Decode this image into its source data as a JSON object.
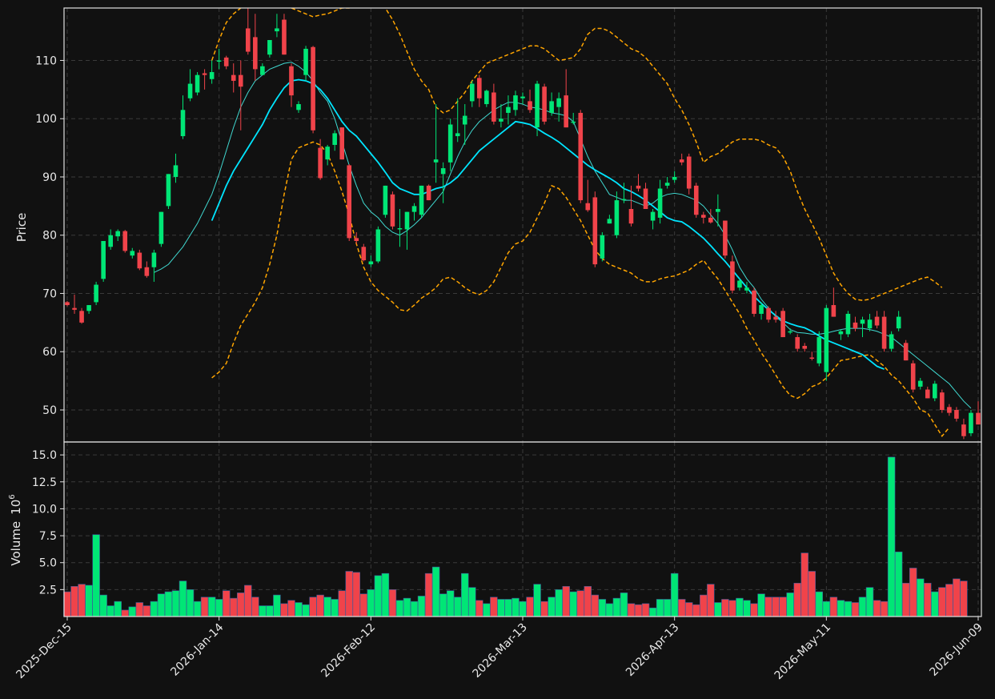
{
  "chart_data": {
    "type": "candlestick",
    "x_tick_labels": [
      "2025-Dec-15",
      "2026-Jan-14",
      "2026-Feb-12",
      "2026-Mar-13",
      "2026-Apr-13",
      "2026-May-11",
      "2026-Jun-09"
    ],
    "x_tick_indices": [
      0,
      21,
      42,
      63,
      84,
      105,
      126
    ],
    "price_panel": {
      "ylabel": "Price",
      "ylim": [
        44.5,
        119
      ],
      "yticks": [
        50,
        60,
        70,
        80,
        90,
        100,
        110
      ],
      "grid": true
    },
    "volume_panel": {
      "ylabel": "Volume",
      "ylabel_exponent": "10",
      "ylabel_exponent_power": "6",
      "ylim": [
        0,
        16.2
      ],
      "yticks": [
        2.5,
        5.0,
        7.5,
        10.0,
        12.5,
        15.0
      ],
      "ytick_labels": [
        "2.5",
        "5.0",
        "7.5",
        "10.0",
        "12.5",
        "15.0"
      ],
      "grid": true
    },
    "colors": {
      "up": "#00e676",
      "down": "#f0434a",
      "ma_fast": "#40d8d0",
      "ma_slow": "#00e5ff",
      "bands": "#ffa500",
      "background": "#111111",
      "grid": "#3a3a3a",
      "frame": "#e0e0e0",
      "text": "#e8e8e8"
    },
    "ohlc": [
      [
        68.5,
        68.7,
        67.8,
        68.0
      ],
      [
        67.5,
        69.8,
        66.5,
        67.2
      ],
      [
        67.0,
        67.5,
        64.8,
        65.0
      ],
      [
        67.0,
        68.0,
        66.5,
        68.0
      ],
      [
        68.5,
        72.0,
        68.0,
        71.5
      ],
      [
        72.5,
        79.0,
        72.0,
        79.0
      ],
      [
        78.0,
        81.0,
        77.5,
        80.0
      ],
      [
        79.8,
        81.0,
        79.0,
        80.7
      ],
      [
        80.7,
        80.9,
        77.0,
        77.3
      ],
      [
        76.5,
        77.8,
        76.0,
        77.3
      ],
      [
        77.0,
        77.5,
        74.0,
        74.3
      ],
      [
        74.5,
        75.5,
        72.7,
        73.0
      ],
      [
        74.5,
        77.5,
        72.0,
        77.0
      ],
      [
        78.5,
        84.0,
        78.0,
        84.0
      ],
      [
        85.0,
        90.5,
        84.5,
        90.5
      ],
      [
        90.0,
        94.0,
        89.0,
        92.0
      ],
      [
        97.0,
        104.0,
        96.5,
        101.5
      ],
      [
        103.5,
        108.5,
        103.0,
        106.0
      ],
      [
        104.5,
        108.0,
        104.0,
        107.5
      ],
      [
        107.8,
        108.5,
        105.0,
        107.5
      ],
      [
        106.8,
        110.0,
        106.0,
        108.0
      ],
      [
        110.0,
        112.0,
        108.5,
        110.0
      ],
      [
        110.5,
        110.8,
        108.5,
        109.0
      ],
      [
        107.5,
        109.5,
        104.5,
        106.5
      ],
      [
        107.5,
        110.0,
        98.0,
        105.5
      ],
      [
        115.5,
        119.0,
        111.0,
        111.5
      ],
      [
        114.0,
        118.0,
        106.5,
        108.5
      ],
      [
        107.5,
        109.5,
        107.5,
        109.0
      ],
      [
        111.0,
        113.5,
        110.5,
        113.5
      ],
      [
        115.0,
        118.0,
        114.0,
        115.5
      ],
      [
        117.0,
        118.0,
        111.0,
        111.0
      ],
      [
        109.0,
        109.5,
        102.0,
        104.0
      ],
      [
        101.5,
        103.0,
        101.0,
        102.5
      ],
      [
        107.5,
        112.5,
        106.5,
        112.0
      ],
      [
        112.3,
        112.5,
        97.5,
        98.0
      ],
      [
        95.0,
        96.5,
        89.5,
        89.8
      ],
      [
        93.0,
        95.5,
        92.0,
        95.2
      ],
      [
        95.5,
        98.0,
        94.5,
        97.5
      ],
      [
        98.5,
        98.5,
        93.0,
        93.0
      ],
      [
        92.0,
        92.2,
        79.0,
        79.5
      ],
      [
        79.5,
        80.5,
        78.5,
        79.0
      ],
      [
        78.0,
        78.5,
        75.5,
        75.7
      ],
      [
        75.0,
        76.5,
        74.5,
        75.5
      ],
      [
        75.5,
        81.5,
        75.2,
        81.0
      ],
      [
        83.5,
        88.5,
        83.0,
        88.5
      ],
      [
        87.0,
        87.5,
        81.0,
        81.5
      ],
      [
        81.0,
        84.5,
        78.0,
        81.2
      ],
      [
        81.0,
        84.0,
        77.5,
        84.0
      ],
      [
        84.0,
        85.5,
        82.5,
        85.0
      ],
      [
        83.5,
        88.5,
        83.0,
        88.5
      ],
      [
        88.5,
        88.7,
        86.0,
        86.0
      ],
      [
        92.5,
        102.5,
        89.0,
        93.0
      ],
      [
        90.5,
        92.5,
        85.5,
        91.5
      ],
      [
        92.5,
        100.0,
        91.0,
        99.0
      ],
      [
        97.0,
        103.5,
        96.0,
        97.5
      ],
      [
        99.0,
        102.5,
        95.5,
        100.5
      ],
      [
        103.0,
        106.5,
        102.0,
        106.0
      ],
      [
        107.0,
        107.5,
        102.0,
        103.5
      ],
      [
        102.5,
        105.0,
        102.0,
        104.8
      ],
      [
        104.5,
        106.0,
        99.0,
        99.5
      ],
      [
        99.5,
        102.5,
        98.5,
        100.0
      ],
      [
        101.0,
        104.0,
        99.0,
        102.0
      ],
      [
        101.5,
        104.8,
        100.5,
        104.0
      ],
      [
        103.5,
        104.5,
        102.5,
        103.8
      ],
      [
        103.0,
        105.0,
        101.0,
        101.5
      ],
      [
        98.5,
        106.5,
        97.0,
        106.0
      ],
      [
        105.5,
        106.0,
        99.0,
        99.5
      ],
      [
        101.0,
        104.5,
        100.5,
        103.0
      ],
      [
        102.0,
        104.5,
        99.5,
        103.5
      ],
      [
        104.0,
        108.5,
        98.5,
        98.5
      ],
      [
        99.5,
        101.0,
        99.0,
        99.5
      ],
      [
        101.0,
        101.5,
        85.5,
        86.0
      ],
      [
        85.5,
        89.5,
        84.0,
        84.3
      ],
      [
        86.5,
        87.5,
        74.5,
        75.0
      ],
      [
        76.0,
        80.5,
        75.5,
        80.0
      ],
      [
        82.0,
        83.5,
        82.0,
        82.8
      ],
      [
        80.0,
        87.5,
        79.5,
        86.0
      ],
      [
        86.0,
        89.0,
        85.5,
        86.2
      ],
      [
        84.5,
        88.5,
        81.5,
        82.0
      ],
      [
        88.5,
        90.5,
        87.5,
        88.0
      ],
      [
        88.0,
        89.0,
        84.5,
        84.5
      ],
      [
        82.5,
        84.5,
        81.0,
        84.0
      ],
      [
        83.0,
        89.5,
        82.0,
        88.0
      ],
      [
        88.5,
        90.0,
        88.0,
        89.0
      ],
      [
        89.5,
        91.0,
        89.0,
        90.0
      ],
      [
        93.0,
        94.0,
        92.0,
        92.5
      ],
      [
        93.5,
        94.0,
        87.0,
        88.0
      ],
      [
        88.5,
        89.0,
        83.0,
        83.5
      ],
      [
        83.5,
        84.0,
        82.0,
        83.0
      ],
      [
        83.0,
        84.5,
        82.0,
        82.2
      ],
      [
        84.0,
        87.0,
        81.5,
        84.5
      ],
      [
        82.5,
        82.5,
        76.0,
        76.5
      ],
      [
        75.5,
        76.5,
        70.0,
        70.5
      ],
      [
        71.0,
        72.5,
        70.5,
        72.2
      ],
      [
        70.5,
        72.0,
        70.0,
        71.0
      ],
      [
        70.5,
        71.0,
        66.0,
        66.5
      ],
      [
        66.5,
        68.5,
        65.5,
        68.0
      ],
      [
        67.5,
        67.8,
        65.0,
        65.5
      ],
      [
        66.0,
        67.0,
        65.0,
        65.5
      ],
      [
        67.0,
        67.5,
        62.5,
        62.5
      ],
      [
        63.5,
        64.0,
        63.0,
        63.5
      ],
      [
        62.5,
        63.0,
        60.0,
        60.5
      ],
      [
        61.0,
        61.5,
        60.0,
        60.5
      ],
      [
        59.0,
        60.0,
        58.5,
        58.8
      ],
      [
        58.0,
        63.5,
        57.5,
        62.5
      ],
      [
        56.5,
        68.0,
        55.0,
        67.5
      ],
      [
        68.0,
        71.0,
        66.0,
        66.0
      ],
      [
        63.0,
        63.8,
        62.0,
        63.5
      ],
      [
        63.0,
        67.0,
        62.5,
        66.5
      ],
      [
        65.0,
        66.0,
        63.5,
        64.0
      ],
      [
        64.8,
        66.0,
        62.5,
        65.5
      ],
      [
        64.0,
        66.5,
        63.5,
        65.5
      ],
      [
        66.0,
        67.0,
        64.0,
        64.5
      ],
      [
        66.0,
        67.0,
        60.0,
        60.5
      ],
      [
        60.5,
        63.5,
        60.0,
        63.0
      ],
      [
        64.0,
        67.0,
        63.5,
        66.0
      ],
      [
        61.5,
        62.0,
        58.5,
        58.5
      ],
      [
        58.0,
        58.5,
        53.0,
        53.5
      ],
      [
        54.0,
        55.5,
        53.5,
        55.0
      ],
      [
        53.5,
        54.0,
        52.0,
        52.0
      ],
      [
        52.0,
        55.0,
        51.5,
        54.5
      ],
      [
        53.0,
        53.5,
        49.5,
        50.0
      ],
      [
        50.5,
        51.0,
        49.0,
        49.5
      ],
      [
        50.0,
        50.5,
        48.0,
        48.5
      ],
      [
        47.5,
        48.5,
        45.0,
        45.5
      ],
      [
        46.0,
        50.0,
        45.5,
        49.5
      ],
      [
        49.5,
        51.5,
        47.5,
        47.5
      ]
    ],
    "volume": [
      2.3,
      2.8,
      3.0,
      2.9,
      7.6,
      2.0,
      1.0,
      1.4,
      0.6,
      0.9,
      1.3,
      1.0,
      1.4,
      2.1,
      2.3,
      2.4,
      3.3,
      2.5,
      1.4,
      1.8,
      1.8,
      1.6,
      2.4,
      1.7,
      2.2,
      2.9,
      1.8,
      1.0,
      1.0,
      2.0,
      1.2,
      1.5,
      1.3,
      1.1,
      1.8,
      2.0,
      1.8,
      1.6,
      2.4,
      4.2,
      4.1,
      2.1,
      2.5,
      3.8,
      4.0,
      2.5,
      1.5,
      1.7,
      1.4,
      1.9,
      4.0,
      4.6,
      2.1,
      2.4,
      1.8,
      4.0,
      2.7,
      1.5,
      1.2,
      1.8,
      1.6,
      1.6,
      1.7,
      1.4,
      1.8,
      3.0,
      1.4,
      1.8,
      2.5,
      2.8,
      2.3,
      2.4,
      2.8,
      2.0,
      1.6,
      1.2,
      1.7,
      2.2,
      1.2,
      1.1,
      1.2,
      0.8,
      1.6,
      1.6,
      4.0,
      1.6,
      1.3,
      1.1,
      2.0,
      3.0,
      1.3,
      1.6,
      1.5,
      1.7,
      1.5,
      1.2,
      2.1,
      1.8,
      1.8,
      1.8,
      2.2,
      3.1,
      5.9,
      4.2,
      2.3,
      1.4,
      1.8,
      1.5,
      1.4,
      1.3,
      1.8,
      2.7,
      1.5,
      1.4,
      14.8,
      6.0,
      3.1,
      4.5,
      3.5,
      3.1,
      2.3,
      2.7,
      3.0,
      3.5,
      3.3
    ],
    "ma_fast": [
      null,
      null,
      null,
      null,
      null,
      null,
      null,
      null,
      null,
      null,
      null,
      null,
      73.6,
      74.2,
      75.0,
      76.5,
      78.0,
      80.0,
      82.0,
      84.5,
      87.0,
      90.5,
      94.5,
      98.5,
      102.0,
      104.5,
      106.5,
      107.5,
      108.5,
      109.0,
      109.5,
      109.7,
      109.0,
      108.0,
      106.5,
      104.5,
      103.0,
      100.0,
      96.0,
      92.0,
      88.5,
      85.5,
      84.0,
      83.0,
      81.5,
      80.5,
      80.0,
      80.8,
      81.8,
      83.0,
      84.5,
      86.0,
      87.5,
      90.5,
      93.5,
      96.0,
      98.0,
      99.5,
      100.5,
      101.5,
      102.2,
      102.8,
      102.8,
      102.5,
      102.0,
      101.8,
      101.5,
      101.0,
      100.8,
      100.5,
      99.5,
      96.5,
      93.5,
      91.0,
      89.0,
      87.0,
      86.5,
      86.0,
      86.0,
      85.5,
      85.0,
      85.5,
      86.5,
      87.0,
      87.2,
      87.0,
      86.5,
      86.0,
      85.0,
      83.5,
      82.0,
      80.0,
      77.5,
      74.5,
      72.5,
      71.0,
      69.0,
      67.5,
      66.0,
      65.0,
      63.8,
      63.3,
      63.2,
      63.0,
      63.0,
      63.2,
      63.5,
      63.8,
      64.0,
      64.0,
      64.0,
      63.8,
      63.5,
      63.0,
      62.5,
      61.5,
      60.5,
      59.5,
      58.5,
      57.5,
      56.5,
      55.5,
      54.5,
      53.0,
      51.5,
      50.3
    ],
    "ma_slow": [
      null,
      null,
      null,
      null,
      null,
      null,
      null,
      null,
      null,
      null,
      null,
      null,
      null,
      null,
      null,
      null,
      null,
      null,
      null,
      null,
      82.5,
      85.5,
      88.5,
      91.0,
      93.0,
      95.0,
      97.0,
      99.0,
      101.5,
      103.5,
      105.3,
      106.5,
      106.7,
      106.5,
      106.0,
      105.0,
      103.5,
      101.5,
      99.5,
      98.0,
      97.0,
      95.5,
      94.0,
      92.5,
      90.8,
      89.0,
      88.0,
      87.5,
      87.0,
      87.0,
      87.5,
      88.0,
      88.3,
      89.0,
      90.0,
      91.5,
      93.0,
      94.5,
      95.5,
      96.5,
      97.5,
      98.5,
      99.5,
      99.3,
      99.0,
      98.3,
      97.5,
      96.8,
      96.0,
      95.0,
      94.0,
      93.0,
      92.0,
      91.2,
      90.5,
      89.8,
      89.0,
      88.0,
      87.5,
      86.8,
      86.0,
      85.0,
      84.0,
      83.0,
      82.5,
      82.3,
      81.5,
      80.5,
      79.5,
      78.2,
      76.8,
      75.5,
      74.0,
      72.5,
      71.0,
      69.5,
      68.3,
      67.2,
      66.2,
      65.3,
      64.8,
      64.4,
      64.1,
      63.5,
      62.7,
      62.0,
      61.5,
      61.0,
      60.5,
      60.0,
      59.5,
      58.5,
      57.5,
      57.0
    ],
    "band_upper": [
      null,
      null,
      null,
      null,
      null,
      null,
      null,
      null,
      null,
      null,
      null,
      null,
      null,
      null,
      null,
      null,
      null,
      null,
      null,
      null,
      110.0,
      113.5,
      116.5,
      118.0,
      119.0,
      119.5,
      120.0,
      120.5,
      120.5,
      120.0,
      119.5,
      119.0,
      118.5,
      118.0,
      117.5,
      117.8,
      118.0,
      118.5,
      119.0,
      119.0,
      119.5,
      119.5,
      120.0,
      120.0,
      119.0,
      117.0,
      114.5,
      111.5,
      108.5,
      106.5,
      105.0,
      102.0,
      101.0,
      101.5,
      103.0,
      104.5,
      106.5,
      108.0,
      109.5,
      110.0,
      110.5,
      111.0,
      111.5,
      112.0,
      112.5,
      112.5,
      112.0,
      111.0,
      110.0,
      110.2,
      110.5,
      112.0,
      114.5,
      115.5,
      115.5,
      115.0,
      114.0,
      113.0,
      112.0,
      111.5,
      110.5,
      109.0,
      107.5,
      106.0,
      103.5,
      101.5,
      99.0,
      96.0,
      92.5,
      93.5,
      94.0,
      95.0,
      96.0,
      96.5,
      96.5,
      96.5,
      96.2,
      95.5,
      95.0,
      93.5,
      91.0,
      87.5,
      84.5,
      82.0,
      79.5,
      76.5,
      73.5,
      71.5,
      70.0,
      69.0,
      68.8,
      69.0,
      69.5,
      70.0,
      70.5,
      71.0,
      71.5,
      72.0,
      72.5,
      72.8,
      72.0,
      71.0
    ],
    "band_lower": [
      null,
      null,
      null,
      null,
      null,
      null,
      null,
      null,
      null,
      null,
      null,
      null,
      null,
      null,
      null,
      null,
      null,
      null,
      null,
      null,
      55.5,
      56.5,
      58.0,
      61.5,
      64.5,
      66.5,
      68.5,
      71.0,
      75.0,
      80.0,
      87.0,
      93.0,
      95.0,
      95.5,
      96.0,
      95.5,
      94.0,
      91.0,
      87.5,
      83.5,
      78.5,
      74.5,
      72.0,
      70.5,
      69.5,
      68.5,
      67.2,
      67.0,
      68.0,
      69.2,
      70.0,
      71.0,
      72.5,
      72.8,
      72.0,
      71.0,
      70.2,
      69.8,
      70.5,
      72.0,
      74.5,
      77.0,
      78.5,
      79.0,
      80.5,
      83.0,
      85.5,
      88.5,
      88.0,
      86.5,
      84.5,
      82.5,
      80.0,
      77.5,
      76.0,
      75.0,
      74.5,
      74.0,
      73.5,
      72.5,
      72.0,
      72.0,
      72.5,
      72.8,
      73.0,
      73.5,
      74.0,
      75.0,
      75.7,
      74.0,
      72.5,
      70.5,
      68.5,
      66.5,
      64.0,
      62.0,
      59.8,
      58.0,
      56.0,
      54.0,
      52.5,
      52.0,
      52.8,
      54.0,
      54.5,
      55.5,
      57.0,
      58.5,
      58.7,
      59.0,
      59.3,
      59.5,
      58.5,
      57.5,
      56.0,
      55.0,
      53.5,
      52.0,
      50.0,
      49.5,
      47.5,
      45.5,
      47.0
    ]
  }
}
